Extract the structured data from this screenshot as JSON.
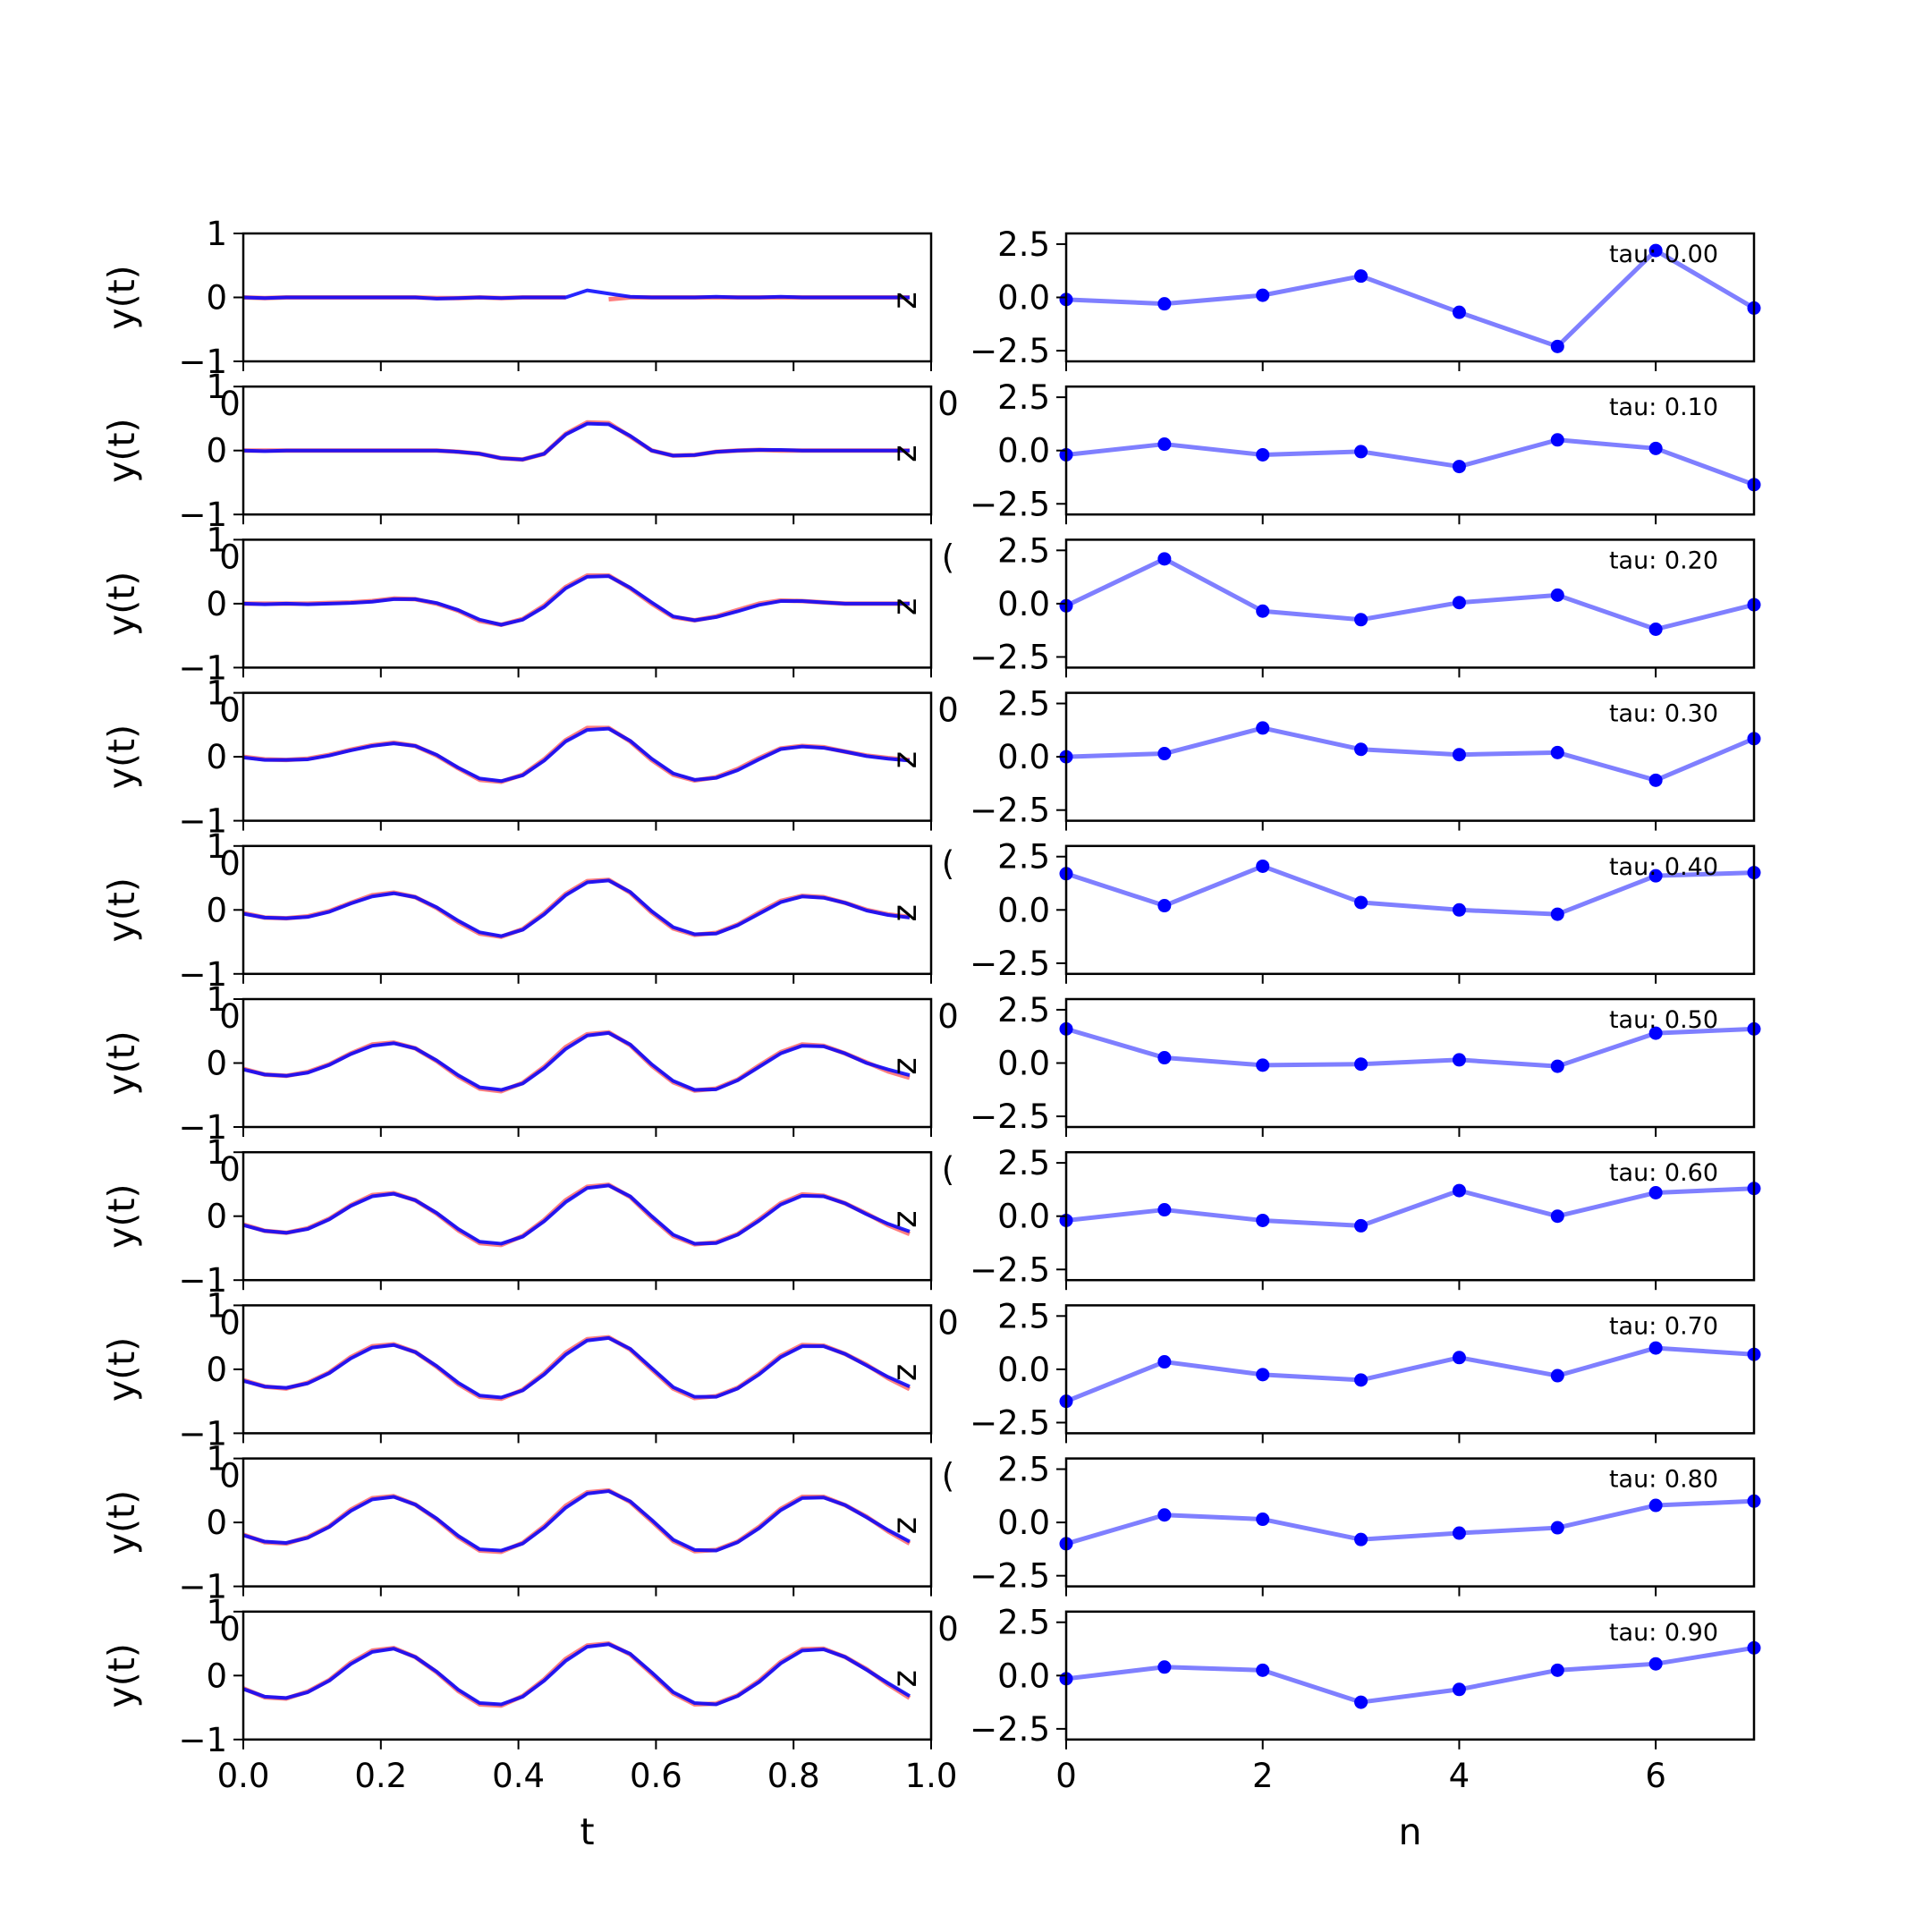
{
  "figure": {
    "background": "#ffffff"
  },
  "colors": {
    "blue": "#0000ff",
    "red": "#ff0000",
    "purple": "#800080",
    "axes": "#000000"
  },
  "chart_data": {
    "type": "line",
    "left_column": {
      "ylabel": "y(t)",
      "xlabel": "t",
      "xlim": [
        0,
        1.0
      ],
      "ylim": [
        -1,
        1
      ],
      "xticks": [
        0.0,
        0.2,
        0.4,
        0.6,
        0.8,
        1.0
      ],
      "xtick_labels": [
        "0.0",
        "0.2",
        "0.4",
        "0.6",
        "0.8",
        "1.0"
      ],
      "yticks": [
        -1,
        0,
        1
      ],
      "ytick_labels": [
        "−1",
        "0",
        "1"
      ],
      "ghost_labels": {
        "left": "0",
        "right": "0",
        "right_short": "("
      },
      "side_letter": "z",
      "t": [
        0.0,
        0.03125,
        0.0625,
        0.09375,
        0.125,
        0.15625,
        0.1875,
        0.21875,
        0.25,
        0.28125,
        0.3125,
        0.34375,
        0.375,
        0.40625,
        0.4375,
        0.46875,
        0.5,
        0.53125,
        0.5625,
        0.59375,
        0.625,
        0.65625,
        0.6875,
        0.71875,
        0.75,
        0.78125,
        0.8125,
        0.84375,
        0.875,
        0.90625,
        0.9375,
        0.96875
      ]
    },
    "right_column": {
      "xlabel": "n",
      "xlim": [
        0,
        7
      ],
      "ylim": [
        -3,
        3
      ],
      "xticks": [
        0,
        2,
        4,
        6
      ],
      "xtick_labels": [
        "0",
        "2",
        "4",
        "6"
      ],
      "yticks": [
        2.5,
        0.0,
        -2.5
      ],
      "ytick_labels": [
        "2.5",
        "0.0",
        "−2.5"
      ],
      "n": [
        0,
        1,
        2,
        3,
        4,
        5,
        6,
        7
      ]
    },
    "panels": [
      {
        "tau_label": "tau: 0.00",
        "blue": [
          0,
          -0.01,
          0,
          0,
          0,
          0,
          0,
          0,
          0,
          -0.02,
          -0.01,
          0,
          -0.01,
          0,
          0,
          0,
          0.11,
          0.06,
          0.01,
          0,
          0,
          0,
          0.01,
          0,
          0,
          0.01,
          0,
          0,
          0,
          0,
          0,
          0
        ],
        "red": [
          0,
          -0.01,
          0,
          0,
          0,
          0,
          0,
          0,
          0,
          -0.01,
          -0.01,
          0,
          -0.01,
          0,
          0,
          0,
          null,
          -0.03,
          0,
          0,
          0,
          0,
          0,
          0,
          0,
          0,
          0,
          0,
          0,
          0,
          0,
          0
        ],
        "coeffs": [
          -0.1,
          -0.3,
          0.1,
          1.0,
          -0.7,
          -2.3,
          2.2,
          -0.5
        ]
      },
      {
        "tau_label": "tau: 0.10",
        "blue": [
          0,
          -0.01,
          0,
          0,
          0,
          0,
          0,
          0,
          0,
          0,
          -0.02,
          -0.05,
          -0.12,
          -0.14,
          -0.05,
          0.25,
          0.42,
          0.41,
          0.23,
          0,
          -0.08,
          -0.07,
          -0.02,
          0,
          0.01,
          0.01,
          0,
          0,
          0,
          0,
          0,
          0
        ],
        "red": [
          0,
          0,
          0,
          0,
          0,
          0,
          0,
          0,
          0,
          0,
          -0.02,
          -0.05,
          -0.12,
          -0.14,
          -0.05,
          0.26,
          0.44,
          0.43,
          0.22,
          0,
          -0.08,
          -0.07,
          -0.02,
          0,
          0.01,
          0,
          0,
          0,
          0,
          0,
          0,
          0
        ],
        "coeffs": [
          -0.2,
          0.3,
          -0.2,
          -0.05,
          -0.75,
          0.5,
          0.1,
          -1.6
        ]
      },
      {
        "tau_label": "tau: 0.20",
        "blue": [
          0,
          -0.01,
          0,
          -0.01,
          0,
          0.01,
          0.03,
          0.07,
          0.07,
          0.01,
          -0.1,
          -0.25,
          -0.33,
          -0.25,
          -0.05,
          0.24,
          0.42,
          0.43,
          0.25,
          0.02,
          -0.2,
          -0.26,
          -0.21,
          -0.12,
          -0.02,
          0.04,
          0.04,
          0.02,
          0,
          0,
          0,
          0
        ],
        "red": [
          0,
          0,
          0,
          0,
          0.01,
          0.02,
          0.04,
          0.08,
          0.07,
          0,
          -0.11,
          -0.27,
          -0.33,
          -0.24,
          -0.03,
          0.26,
          0.44,
          0.44,
          0.24,
          0,
          -0.21,
          -0.26,
          -0.2,
          -0.1,
          0,
          0.05,
          0.04,
          0.02,
          0,
          0,
          0,
          0
        ],
        "coeffs": [
          -0.1,
          2.1,
          -0.35,
          -0.75,
          0.05,
          0.4,
          -1.2,
          -0.05
        ]
      },
      {
        "tau_label": "tau: 0.30",
        "blue": [
          -0.01,
          -0.05,
          -0.05,
          -0.04,
          0.02,
          0.1,
          0.17,
          0.21,
          0.17,
          0.03,
          -0.17,
          -0.34,
          -0.38,
          -0.29,
          -0.06,
          0.24,
          0.42,
          0.44,
          0.25,
          -0.03,
          -0.26,
          -0.36,
          -0.33,
          -0.21,
          -0.04,
          0.12,
          0.16,
          0.14,
          0.08,
          0.01,
          -0.03,
          -0.06
        ],
        "red": [
          0,
          -0.04,
          -0.05,
          -0.03,
          0.03,
          0.11,
          0.18,
          0.22,
          0.17,
          0.02,
          -0.18,
          -0.36,
          -0.39,
          -0.28,
          -0.04,
          0.26,
          0.45,
          0.45,
          0.24,
          -0.05,
          -0.28,
          -0.37,
          -0.32,
          -0.19,
          -0.02,
          0.13,
          0.17,
          0.15,
          0.08,
          0.02,
          -0.02,
          -0.05
        ],
        "coeffs": [
          0.0,
          0.15,
          1.35,
          0.35,
          0.1,
          0.2,
          -1.1,
          0.85
        ]
      },
      {
        "tau_label": "tau: 0.40",
        "blue": [
          -0.06,
          -0.12,
          -0.13,
          -0.11,
          -0.03,
          0.1,
          0.21,
          0.26,
          0.2,
          0.04,
          -0.17,
          -0.35,
          -0.41,
          -0.31,
          -0.07,
          0.23,
          0.43,
          0.46,
          0.28,
          -0.02,
          -0.27,
          -0.38,
          -0.37,
          -0.24,
          -0.06,
          0.12,
          0.21,
          0.19,
          0.11,
          -0.01,
          -0.08,
          -0.12
        ],
        "red": [
          -0.05,
          -0.12,
          -0.13,
          -0.1,
          -0.02,
          0.11,
          0.23,
          0.27,
          0.2,
          0.03,
          -0.19,
          -0.37,
          -0.42,
          -0.3,
          -0.05,
          0.25,
          0.45,
          0.47,
          0.27,
          -0.04,
          -0.29,
          -0.39,
          -0.36,
          -0.23,
          -0.04,
          0.14,
          0.22,
          0.2,
          0.11,
          0,
          -0.07,
          -0.11
        ],
        "coeffs": [
          1.7,
          0.2,
          2.05,
          0.35,
          0.0,
          -0.2,
          1.6,
          1.75
        ]
      },
      {
        "tau_label": "tau: 0.50",
        "blue": [
          -0.1,
          -0.18,
          -0.2,
          -0.15,
          -0.03,
          0.14,
          0.27,
          0.31,
          0.23,
          0.04,
          -0.19,
          -0.38,
          -0.42,
          -0.32,
          -0.08,
          0.22,
          0.43,
          0.47,
          0.29,
          -0.02,
          -0.28,
          -0.42,
          -0.41,
          -0.27,
          -0.06,
          0.15,
          0.27,
          0.26,
          0.15,
          0,
          -0.1,
          -0.19
        ],
        "red": [
          -0.09,
          -0.18,
          -0.2,
          -0.14,
          -0.02,
          0.15,
          0.29,
          0.32,
          0.23,
          0.03,
          -0.21,
          -0.4,
          -0.44,
          -0.31,
          -0.06,
          0.25,
          0.45,
          0.48,
          0.28,
          -0.04,
          -0.3,
          -0.43,
          -0.4,
          -0.26,
          -0.04,
          0.17,
          0.29,
          0.27,
          0.15,
          0.01,
          -0.13,
          -0.23
        ],
        "coeffs": [
          1.6,
          0.25,
          -0.1,
          -0.05,
          0.15,
          -0.15,
          1.4,
          1.6
        ]
      },
      {
        "tau_label": "tau: 0.60",
        "blue": [
          -0.14,
          -0.23,
          -0.26,
          -0.2,
          -0.05,
          0.16,
          0.31,
          0.35,
          0.25,
          0.05,
          -0.2,
          -0.4,
          -0.43,
          -0.32,
          -0.08,
          0.22,
          0.44,
          0.48,
          0.31,
          0,
          -0.29,
          -0.43,
          -0.42,
          -0.29,
          -0.07,
          0.18,
          0.32,
          0.31,
          0.2,
          0.03,
          -0.12,
          -0.24
        ],
        "red": [
          -0.13,
          -0.23,
          -0.26,
          -0.19,
          -0.04,
          0.17,
          0.33,
          0.36,
          0.25,
          0.04,
          -0.22,
          -0.42,
          -0.45,
          -0.31,
          -0.06,
          0.25,
          0.46,
          0.49,
          0.3,
          -0.02,
          -0.31,
          -0.44,
          -0.41,
          -0.28,
          -0.05,
          0.2,
          0.34,
          0.32,
          0.2,
          0.04,
          -0.14,
          -0.28
        ],
        "coeffs": [
          -0.2,
          0.3,
          -0.2,
          -0.45,
          1.2,
          0.0,
          1.1,
          1.3
        ]
      },
      {
        "tau_label": "tau: 0.70",
        "blue": [
          -0.18,
          -0.27,
          -0.29,
          -0.22,
          -0.06,
          0.17,
          0.34,
          0.38,
          0.27,
          0.05,
          -0.21,
          -0.41,
          -0.44,
          -0.33,
          -0.08,
          0.23,
          0.45,
          0.49,
          0.32,
          0.02,
          -0.28,
          -0.43,
          -0.43,
          -0.3,
          -0.08,
          0.19,
          0.36,
          0.36,
          0.24,
          0.06,
          -0.12,
          -0.27
        ],
        "red": [
          -0.17,
          -0.27,
          -0.3,
          -0.21,
          -0.05,
          0.19,
          0.36,
          0.39,
          0.27,
          0.04,
          -0.23,
          -0.43,
          -0.46,
          -0.32,
          -0.06,
          0.26,
          0.47,
          0.5,
          0.31,
          0,
          -0.3,
          -0.45,
          -0.42,
          -0.29,
          -0.06,
          0.21,
          0.38,
          0.37,
          0.24,
          0.07,
          -0.14,
          -0.31
        ],
        "coeffs": [
          -1.5,
          0.35,
          -0.25,
          -0.5,
          0.55,
          -0.3,
          1.0,
          0.7
        ]
      },
      {
        "tau_label": "tau: 0.80",
        "blue": [
          -0.2,
          -0.3,
          -0.32,
          -0.24,
          -0.07,
          0.18,
          0.36,
          0.4,
          0.28,
          0.06,
          -0.21,
          -0.42,
          -0.44,
          -0.33,
          -0.08,
          0.23,
          0.45,
          0.49,
          0.33,
          0.04,
          -0.27,
          -0.43,
          -0.44,
          -0.31,
          -0.09,
          0.19,
          0.38,
          0.39,
          0.27,
          0.08,
          -0.12,
          -0.3
        ],
        "red": [
          -0.19,
          -0.31,
          -0.33,
          -0.23,
          -0.06,
          0.2,
          0.38,
          0.41,
          0.28,
          0.05,
          -0.23,
          -0.44,
          -0.46,
          -0.32,
          -0.06,
          0.26,
          0.47,
          0.5,
          0.32,
          0.02,
          -0.29,
          -0.45,
          -0.43,
          -0.3,
          -0.07,
          0.21,
          0.4,
          0.4,
          0.27,
          0.09,
          -0.14,
          -0.33
        ],
        "coeffs": [
          -1.0,
          0.35,
          0.15,
          -0.8,
          -0.5,
          -0.25,
          0.8,
          1.0
        ]
      },
      {
        "tau_label": "tau: 0.90",
        "blue": [
          -0.21,
          -0.33,
          -0.35,
          -0.26,
          -0.08,
          0.18,
          0.37,
          0.42,
          0.29,
          0.06,
          -0.22,
          -0.43,
          -0.45,
          -0.33,
          -0.08,
          0.23,
          0.45,
          0.49,
          0.34,
          0.05,
          -0.26,
          -0.43,
          -0.45,
          -0.32,
          -0.1,
          0.19,
          0.39,
          0.41,
          0.29,
          0.09,
          -0.12,
          -0.32
        ],
        "red": [
          -0.2,
          -0.34,
          -0.36,
          -0.25,
          -0.07,
          0.2,
          0.39,
          0.43,
          0.29,
          0.05,
          -0.24,
          -0.45,
          -0.47,
          -0.32,
          -0.06,
          0.26,
          0.47,
          0.5,
          0.33,
          0.03,
          -0.28,
          -0.45,
          -0.44,
          -0.31,
          -0.08,
          0.21,
          0.41,
          0.42,
          0.29,
          0.1,
          -0.14,
          -0.35
        ],
        "coeffs": [
          -0.15,
          0.4,
          0.25,
          -1.25,
          -0.65,
          0.25,
          0.55,
          1.3
        ]
      }
    ]
  }
}
